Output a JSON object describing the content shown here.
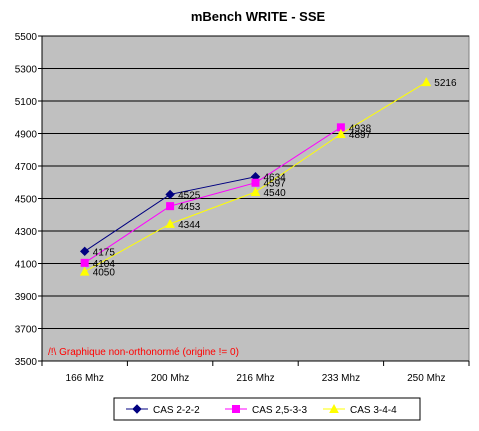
{
  "chart_data": {
    "type": "line",
    "title": "mBench WRITE - SSE",
    "categories": [
      "166 Mhz",
      "200 Mhz",
      "216 Mhz",
      "233 Mhz",
      "250 Mhz"
    ],
    "ylim": [
      3500,
      5500
    ],
    "yticks": [
      3500,
      3700,
      3900,
      4100,
      4300,
      4500,
      4700,
      4900,
      5100,
      5300,
      5500
    ],
    "grid": true,
    "legend_position": "bottom",
    "annotation": "/!\\ Graphique non-orthonormé (origine != 0)",
    "colors": {
      "plot_background": "#c0c0c0",
      "annotation": "#ff0000"
    },
    "series": [
      {
        "name": "CAS 2-2-2",
        "color": "#000080",
        "marker": "diamond",
        "values": [
          4175,
          4525,
          4634,
          null,
          null
        ]
      },
      {
        "name": "CAS 2,5-3-3",
        "color": "#ff00ff",
        "marker": "square",
        "values": [
          4104,
          4453,
          4597,
          4938,
          null
        ]
      },
      {
        "name": "CAS 3-4-4",
        "color": "#ffff00",
        "marker": "triangle",
        "values": [
          4050,
          4344,
          4540,
          4897,
          5216
        ]
      }
    ]
  }
}
